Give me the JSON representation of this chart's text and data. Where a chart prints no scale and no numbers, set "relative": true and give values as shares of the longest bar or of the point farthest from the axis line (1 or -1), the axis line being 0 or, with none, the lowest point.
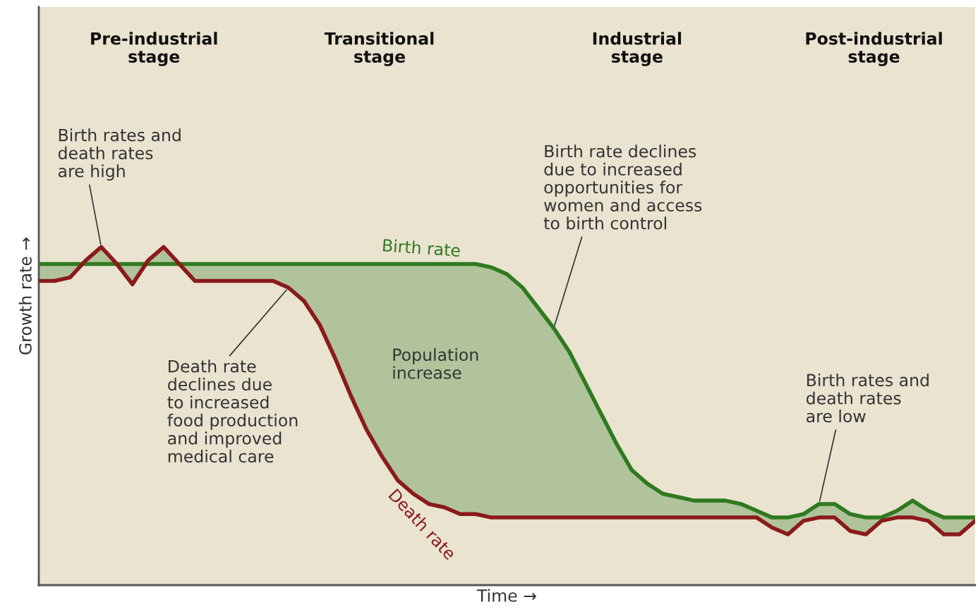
{
  "chart_data": {
    "type": "line",
    "relative": true,
    "xlabel": "Time →",
    "ylabel": "Growth rate →",
    "categories": [
      null,
      null,
      null,
      null,
      null,
      null,
      null,
      null,
      null,
      null,
      null,
      null,
      null,
      null,
      null,
      null,
      null,
      null,
      null,
      null,
      null,
      null,
      null,
      null,
      null,
      null,
      null,
      null,
      null,
      null,
      null,
      null,
      null,
      null,
      null,
      null,
      null,
      null,
      null,
      null,
      null,
      null,
      null,
      null,
      null,
      null,
      null,
      null,
      null,
      null,
      null,
      null,
      null,
      null,
      null,
      null,
      null,
      null,
      null,
      null,
      null
    ],
    "tick_labels": false,
    "legend": false,
    "marker": "none",
    "line_style": "solid",
    "series": [
      {
        "name": "Birth rate",
        "color": "#2f7a1f",
        "values": [
          0.95,
          0.95,
          0.95,
          0.95,
          0.95,
          0.95,
          0.95,
          0.95,
          0.95,
          0.95,
          0.95,
          0.95,
          0.95,
          0.95,
          0.95,
          0.95,
          0.95,
          0.95,
          0.95,
          0.95,
          0.95,
          0.95,
          0.95,
          0.95,
          0.95,
          0.95,
          0.95,
          0.95,
          0.95,
          0.94,
          0.92,
          0.88,
          0.82,
          0.76,
          0.69,
          0.6,
          0.51,
          0.42,
          0.34,
          0.3,
          0.27,
          0.26,
          0.25,
          0.25,
          0.25,
          0.24,
          0.22,
          0.2,
          0.2,
          0.21,
          0.24,
          0.24,
          0.21,
          0.2,
          0.2,
          0.22,
          0.25,
          0.22,
          0.2,
          0.2,
          0.2
        ],
        "lower": [
          0.9,
          0.9,
          0.91,
          0.95,
          0.95,
          0.95,
          0.89,
          0.95,
          0.95,
          0.95,
          0.9,
          0.9,
          0.9,
          0.9,
          0.9,
          0.9,
          0.88,
          0.84,
          0.77,
          0.67,
          0.56,
          0.46,
          0.38,
          0.31,
          0.27,
          0.24,
          0.23,
          0.21,
          0.21,
          0.2,
          0.2,
          0.2,
          0.2,
          0.2,
          0.2,
          0.2,
          0.2,
          0.2,
          0.2,
          0.2,
          0.2,
          0.2,
          0.2,
          0.2,
          0.2,
          0.2,
          0.2,
          0.17,
          0.15,
          0.19,
          0.2,
          0.2,
          0.16,
          0.15,
          0.19,
          0.2,
          0.2,
          0.19,
          0.15,
          0.15,
          0.19
        ],
        "upper": [
          0.95,
          0.95,
          0.95,
          0.96,
          1.0,
          0.95,
          0.95,
          0.96,
          1.0,
          0.95,
          0.95,
          0.95,
          0.95,
          0.95,
          0.95,
          0.95,
          0.95,
          0.95,
          0.95,
          0.95,
          0.95,
          0.95,
          0.95,
          0.95,
          0.95,
          0.95,
          0.95,
          0.95,
          0.95,
          0.94,
          0.92,
          0.88,
          0.82,
          0.76,
          0.69,
          0.6,
          0.51,
          0.42,
          0.34,
          0.3,
          0.27,
          0.26,
          0.25,
          0.25,
          0.25,
          0.24,
          0.22,
          0.2,
          0.2,
          0.21,
          0.24,
          0.24,
          0.21,
          0.2,
          0.2,
          0.22,
          0.25,
          0.22,
          0.2,
          0.2,
          0.2
        ]
      },
      {
        "name": "Death rate",
        "color": "#8b1a1a",
        "values": [
          0.9,
          0.9,
          0.91,
          0.96,
          1.0,
          0.95,
          0.89,
          0.96,
          1.0,
          0.95,
          0.9,
          0.9,
          0.9,
          0.9,
          0.9,
          0.9,
          0.88,
          0.84,
          0.77,
          0.67,
          0.56,
          0.46,
          0.38,
          0.31,
          0.27,
          0.24,
          0.23,
          0.21,
          0.21,
          0.2,
          0.2,
          0.2,
          0.2,
          0.2,
          0.2,
          0.2,
          0.2,
          0.2,
          0.2,
          0.2,
          0.2,
          0.2,
          0.2,
          0.2,
          0.2,
          0.2,
          0.2,
          0.17,
          0.15,
          0.19,
          0.2,
          0.2,
          0.16,
          0.15,
          0.19,
          0.2,
          0.2,
          0.19,
          0.15,
          0.15,
          0.19
        ]
      }
    ],
    "annotations": [
      "Pre-industrial\nstage",
      "Transitional\nstage",
      "Industrial\nstage",
      "Post-industrial\nstage",
      "Birth rates and\ndeath rates\nare high",
      "Death rate\ndeclines due\nto increased\nfood production\nand improved\nmedical care",
      "Population\nincrease",
      "Birth rate declines\ndue to increased\nopportunities for\nwomen and access\nto birth control",
      "Birth rates and\ndeath rates\nare low"
    ]
  }
}
